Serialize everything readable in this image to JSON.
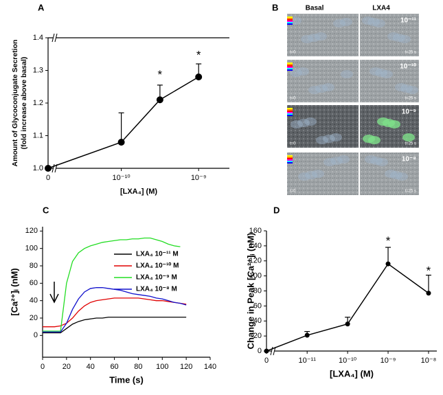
{
  "chart_data": [
    {
      "type": "line",
      "panel_label": "A",
      "ylabel": [
        "Amount of Glycoconjugate Secretion",
        "(fold increase above basal)"
      ],
      "xlabel": "[LXA₄] (M)",
      "xscale": "log",
      "axis_break": true,
      "frame": true,
      "x": [
        0,
        1e-10,
        3.16e-10,
        1e-09
      ],
      "series": [
        {
          "color": "#000000",
          "values": [
            1.0,
            1.08,
            1.21,
            1.28
          ],
          "errors": [
            0,
            0.09,
            0.045,
            0.04
          ]
        }
      ],
      "markers": true,
      "xlim": [
        1.6e-11,
        2.5e-09
      ],
      "xticks": [
        0,
        {
          "value": 1e-10,
          "label": "10⁻¹⁰"
        },
        {
          "value": 1e-09,
          "label": "10⁻⁹"
        }
      ],
      "ylim": [
        1.0,
        1.4
      ],
      "yticks": [
        {
          "value": 1.0,
          "label": "1.0"
        },
        1.1,
        1.2,
        1.3,
        1.4
      ],
      "annotations": [
        {
          "text": "*",
          "x": 3.16e-10,
          "y": 1.285
        },
        {
          "text": "*",
          "x": 1e-09,
          "y": 1.345
        }
      ]
    },
    {
      "type": "line",
      "panel_label": "C",
      "ylabel": [
        "[Ca²⁺]ᵢ (nM)"
      ],
      "xlabel": "Time (s)",
      "xscale": "linear",
      "x": [
        0,
        5,
        10,
        15,
        20,
        25,
        30,
        35,
        40,
        45,
        50,
        55,
        60,
        65,
        70,
        75,
        80,
        85,
        90,
        95,
        100,
        105,
        110,
        115,
        120
      ],
      "series": [
        {
          "name": "LXA₄ 10⁻¹¹ M",
          "color": "#000000",
          "values": [
            3,
            3,
            3,
            3,
            8,
            13,
            16,
            18,
            19,
            20,
            20,
            21,
            21,
            21,
            21,
            21,
            21,
            21,
            21,
            21,
            21,
            21,
            21,
            21,
            21
          ]
        },
        {
          "name": "LXA₄ 10⁻¹⁰ M",
          "color": "#e00000",
          "values": [
            10,
            10,
            10,
            11,
            14,
            20,
            28,
            34,
            38,
            40,
            41,
            42,
            43,
            43,
            43,
            43,
            43,
            42,
            41,
            40,
            40,
            39,
            38,
            37,
            36
          ]
        },
        {
          "name": "LXA₄ 10⁻⁹ M",
          "color": "#22dd22",
          "values": [
            5,
            5,
            5,
            5,
            60,
            85,
            95,
            100,
            103,
            105,
            107,
            108,
            109,
            110,
            110,
            111,
            111,
            112,
            112,
            110,
            108,
            105,
            103,
            102,
            null
          ]
        },
        {
          "name": "LXA₄ 10⁻⁸ M",
          "color": "#1010cc",
          "values": [
            4,
            4,
            4,
            4,
            14,
            30,
            42,
            50,
            54,
            55,
            55,
            54,
            53,
            52,
            50,
            48,
            47,
            46,
            45,
            43,
            42,
            40,
            38,
            37,
            35
          ]
        }
      ],
      "legend": "upper right",
      "xlim": [
        0,
        140
      ],
      "xticks": [
        0,
        20,
        40,
        60,
        80,
        100,
        120,
        140
      ],
      "ylim": [
        -25,
        125
      ],
      "yticks": [
        0,
        20,
        40,
        60,
        80,
        100,
        120
      ]
    },
    {
      "type": "line",
      "panel_label": "D",
      "ylabel": [
        "Change in Peak [Ca²⁺]ᵢ (nM)"
      ],
      "xlabel": "[LXA₄] (M)",
      "xscale": "log",
      "axis_break": true,
      "x": [
        0,
        1e-11,
        1e-10,
        1e-09,
        1e-08
      ],
      "series": [
        {
          "color": "#000000",
          "values": [
            0,
            21,
            36,
            116,
            77
          ],
          "errors": [
            0,
            5,
            9,
            22,
            24
          ]
        }
      ],
      "markers": true,
      "xlim": [
        2e-12,
        1.6e-08
      ],
      "xticks": [
        0,
        {
          "value": 1e-11,
          "label": "10⁻¹¹"
        },
        {
          "value": 1e-10,
          "label": "10⁻¹⁰"
        },
        {
          "value": 1e-09,
          "label": "10⁻⁹"
        },
        {
          "value": 1e-08,
          "label": "10⁻⁸"
        }
      ],
      "ylim": [
        0,
        160
      ],
      "yticks": [
        0,
        20,
        40,
        60,
        80,
        100,
        120,
        140,
        160
      ],
      "annotations": [
        {
          "text": "*",
          "x": 1e-09,
          "y": 146
        },
        {
          "text": "*",
          "x": 1e-08,
          "y": 106
        }
      ]
    }
  ],
  "image_panel": {
    "panel_label": "B",
    "columns": [
      "Basal",
      "LXA4"
    ],
    "rows": [
      {
        "dose": "10⁻¹¹",
        "left_time": "t=0",
        "right_time": "t=25 s"
      },
      {
        "dose": "10⁻¹⁰",
        "left_time": "t=0",
        "right_time": "t=25 s"
      },
      {
        "dose": "10⁻⁹",
        "left_time": "t=0",
        "right_time": "t=25 s"
      },
      {
        "dose": "10⁻⁸",
        "left_time": "t=0",
        "right_time": "t=25 s"
      }
    ]
  }
}
